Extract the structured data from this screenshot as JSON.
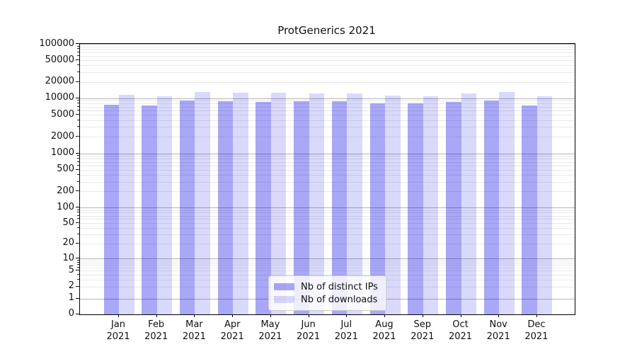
{
  "title": "ProtGenerics 2021",
  "chart_data": {
    "type": "bar",
    "title": "ProtGenerics 2021",
    "x_categories": [
      "Jan",
      "Feb",
      "Mar",
      "Apr",
      "May",
      "Jun",
      "Jul",
      "Aug",
      "Sep",
      "Oct",
      "Nov",
      "Dec"
    ],
    "x_year": "2021",
    "series": [
      {
        "name": "Nb of distinct IPs",
        "color": "rgba(0,0,228,0.34)",
        "values": [
          7500,
          7300,
          9000,
          8700,
          8600,
          8700,
          8700,
          8000,
          8000,
          8500,
          9100,
          7400
        ]
      },
      {
        "name": "Nb of downloads",
        "color": "rgba(0,0,228,0.15)",
        "values": [
          11300,
          10900,
          12900,
          12400,
          12500,
          12300,
          12300,
          11100,
          10800,
          12000,
          12900,
          10800
        ]
      }
    ],
    "y_scale": "symlog",
    "y_ticks": [
      0,
      1,
      2,
      5,
      10,
      20,
      50,
      100,
      200,
      500,
      1000,
      2000,
      5000,
      10000,
      20000,
      50000,
      100000
    ],
    "ylim": [
      0,
      100000
    ],
    "xlabel": "",
    "ylabel": "",
    "grid": true,
    "legend_position": "lower center"
  },
  "colors": {
    "major_grid": "#b4b4b4",
    "minor_grid": "#e9e9e9",
    "axis": "#000000",
    "background": "#ffffff"
  }
}
